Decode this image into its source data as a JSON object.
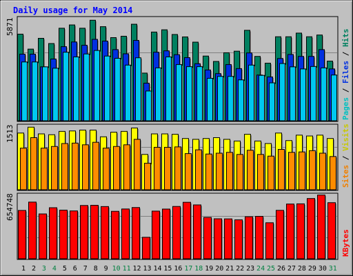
{
  "title": "Daily usage for May 2014",
  "legend": {
    "top": [
      {
        "text": "Pages",
        "color": "#00c0c0"
      },
      {
        "text": "/",
        "color": "#000000"
      },
      {
        "text": "Files",
        "color": "#0030e0"
      },
      {
        "text": "/",
        "color": "#000000"
      },
      {
        "text": "Hits",
        "color": "#008060"
      }
    ],
    "middle": [
      {
        "text": "Sites",
        "color": "#f08000"
      },
      {
        "text": "/",
        "color": "#000000"
      },
      {
        "text": "Visits",
        "color": "#c8c800"
      }
    ],
    "bottom": [
      {
        "text": "KBytes",
        "color": "#ff0000"
      }
    ]
  },
  "colors": {
    "background": "#c0c0c0",
    "panel": "#c0c0c0",
    "title": "#0000ff",
    "weekend_day": "#008040",
    "weekday": "#000000"
  },
  "chart_data": [
    {
      "type": "bar",
      "panel": "top",
      "ymax_label": "5871",
      "ymax": 5871,
      "categories": [
        "1",
        "2",
        "3",
        "4",
        "5",
        "6",
        "7",
        "8",
        "9",
        "10",
        "11",
        "12",
        "13",
        "14",
        "15",
        "16",
        "17",
        "18",
        "19",
        "20",
        "21",
        "22",
        "23",
        "24",
        "25",
        "26",
        "27",
        "28",
        "29",
        "30",
        "31"
      ],
      "series": [
        {
          "name": "Hits",
          "color": "#008060",
          "values": [
            5000,
            4140,
            4760,
            4460,
            5340,
            5530,
            5340,
            5800,
            5430,
            4800,
            4880,
            5570,
            2760,
            5120,
            5250,
            4980,
            4840,
            4540,
            3740,
            3430,
            3930,
            4020,
            5220,
            3720,
            3330,
            4850,
            4850,
            5060,
            4850,
            4950,
            3450
          ]
        },
        {
          "name": "Files",
          "color": "#0030e0",
          "values": [
            3850,
            3850,
            3120,
            3570,
            4280,
            4550,
            4360,
            4700,
            4600,
            4110,
            3870,
            4640,
            2180,
            3960,
            4040,
            3820,
            3650,
            3300,
            2940,
            2730,
            3250,
            3020,
            3920,
            2650,
            2540,
            3600,
            3830,
            3720,
            3720,
            4110,
            3000
          ]
        },
        {
          "name": "Pages",
          "color": "#00c8f0",
          "values": [
            3400,
            3400,
            3120,
            3040,
            3960,
            3690,
            3860,
            4060,
            3740,
            3610,
            3220,
            3640,
            1730,
            3060,
            3690,
            3250,
            3130,
            3130,
            2460,
            2570,
            2570,
            2370,
            3220,
            2630,
            2200,
            3310,
            3120,
            3000,
            3140,
            3060,
            2650
          ]
        }
      ]
    },
    {
      "type": "bar",
      "panel": "middle",
      "ymax_label": "1513",
      "ymax": 1513,
      "categories": [
        "1",
        "2",
        "3",
        "4",
        "5",
        "6",
        "7",
        "8",
        "9",
        "10",
        "11",
        "12",
        "13",
        "14",
        "15",
        "16",
        "17",
        "18",
        "19",
        "20",
        "21",
        "22",
        "23",
        "24",
        "25",
        "26",
        "27",
        "28",
        "29",
        "30",
        "31"
      ],
      "series": [
        {
          "name": "Visits",
          "color": "#ffff00",
          "values": [
            1360,
            1500,
            1340,
            1320,
            1400,
            1410,
            1430,
            1430,
            1270,
            1380,
            1400,
            1480,
            850,
            1340,
            1340,
            1330,
            1230,
            1210,
            1230,
            1250,
            1210,
            1170,
            1330,
            1170,
            1110,
            1360,
            1180,
            1310,
            1290,
            1310,
            1230
          ]
        },
        {
          "name": "Sites",
          "color": "#ff8c00",
          "values": [
            1000,
            1250,
            1000,
            1040,
            1110,
            1120,
            1080,
            1140,
            1000,
            1040,
            1080,
            1210,
            640,
            1020,
            1020,
            1030,
            870,
            960,
            860,
            880,
            900,
            850,
            950,
            850,
            810,
            970,
            900,
            910,
            940,
            880,
            800
          ]
        }
      ]
    },
    {
      "type": "bar",
      "panel": "bottom",
      "ymax_label": "654748",
      "ymax": 654748,
      "categories": [
        "1",
        "2",
        "3",
        "4",
        "5",
        "6",
        "7",
        "8",
        "9",
        "10",
        "11",
        "12",
        "13",
        "14",
        "15",
        "16",
        "17",
        "18",
        "19",
        "20",
        "21",
        "22",
        "23",
        "24",
        "25",
        "26",
        "27",
        "28",
        "29",
        "30",
        "31"
      ],
      "series": [
        {
          "name": "KBytes",
          "color": "#ff0000",
          "values": [
            502000,
            588000,
            466000,
            530000,
            505000,
            497000,
            553000,
            555000,
            542000,
            493000,
            517000,
            532000,
            225000,
            495000,
            516000,
            543000,
            586000,
            559000,
            430000,
            416000,
            415000,
            405000,
            437000,
            441000,
            375000,
            503000,
            568000,
            570000,
            625000,
            661000,
            582000
          ]
        }
      ]
    }
  ],
  "x_labels": [
    {
      "t": "1",
      "w": false
    },
    {
      "t": "2",
      "w": false
    },
    {
      "t": "3",
      "w": true
    },
    {
      "t": "4",
      "w": true
    },
    {
      "t": "5",
      "w": false
    },
    {
      "t": "6",
      "w": false
    },
    {
      "t": "7",
      "w": false
    },
    {
      "t": "8",
      "w": false
    },
    {
      "t": "9",
      "w": false
    },
    {
      "t": "10",
      "w": true
    },
    {
      "t": "11",
      "w": true
    },
    {
      "t": "12",
      "w": false
    },
    {
      "t": "13",
      "w": false
    },
    {
      "t": "14",
      "w": false
    },
    {
      "t": "15",
      "w": false
    },
    {
      "t": "16",
      "w": false
    },
    {
      "t": "17",
      "w": true
    },
    {
      "t": "18",
      "w": true
    },
    {
      "t": "19",
      "w": false
    },
    {
      "t": "20",
      "w": false
    },
    {
      "t": "21",
      "w": false
    },
    {
      "t": "22",
      "w": false
    },
    {
      "t": "23",
      "w": false
    },
    {
      "t": "24",
      "w": true
    },
    {
      "t": "25",
      "w": true
    },
    {
      "t": "26",
      "w": false
    },
    {
      "t": "27",
      "w": false
    },
    {
      "t": "28",
      "w": false
    },
    {
      "t": "29",
      "w": false
    },
    {
      "t": "30",
      "w": false
    },
    {
      "t": "31",
      "w": true
    }
  ]
}
